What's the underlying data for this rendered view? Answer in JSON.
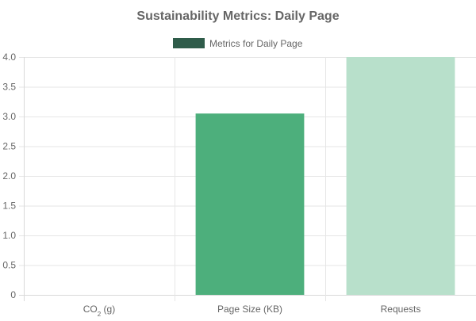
{
  "chart_data": {
    "type": "bar",
    "title": "Sustainability Metrics: Daily Page",
    "legend": {
      "placement": "top",
      "entries": [
        {
          "label": "Metrics for Daily Page",
          "color": "#2f5c4a"
        }
      ]
    },
    "categories": [
      {
        "base": "CO",
        "sub": "2",
        "rest": " (g)"
      },
      {
        "base": "Page Size (KB)",
        "sub": "",
        "rest": ""
      },
      {
        "base": "Requests",
        "sub": "",
        "rest": ""
      }
    ],
    "series": [
      {
        "name": "Metrics for Daily Page",
        "values": [
          0,
          3.05,
          4
        ],
        "colors": [
          "#4daf7c",
          "#4daf7c",
          "#b8e0cb"
        ]
      }
    ],
    "ylim": [
      0,
      4
    ],
    "y_ticks": [
      "0",
      "0.5",
      "1.0",
      "1.5",
      "2.0",
      "2.5",
      "3.0",
      "3.5",
      "4.0"
    ],
    "y_tick_values": [
      0,
      0.5,
      1,
      1.5,
      2,
      2.5,
      3,
      3.5,
      4
    ],
    "grid": true,
    "xlabel": "",
    "ylabel": ""
  }
}
